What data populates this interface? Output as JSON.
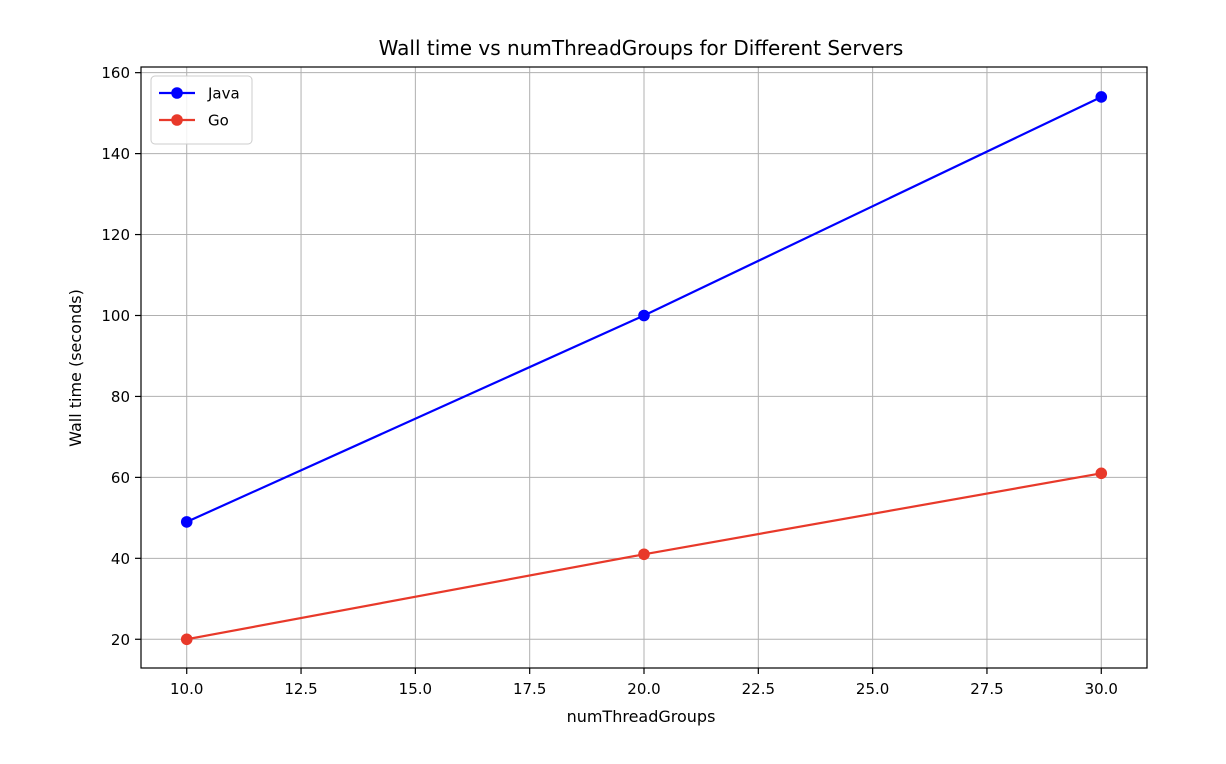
{
  "chart_data": {
    "type": "line",
    "title": "Wall time vs numThreadGroups for Different Servers",
    "xlabel": "numThreadGroups",
    "ylabel": "Wall time (seconds)",
    "xlim": [
      9.0,
      31.0
    ],
    "ylim": [
      12.9,
      161.4
    ],
    "x_ticks": [
      10.0,
      12.5,
      15.0,
      17.5,
      20.0,
      22.5,
      25.0,
      27.5,
      30.0
    ],
    "x_tick_labels": [
      "10.0",
      "12.5",
      "15.0",
      "17.5",
      "20.0",
      "22.5",
      "25.0",
      "27.5",
      "30.0"
    ],
    "y_ticks": [
      20,
      40,
      60,
      80,
      100,
      120,
      140,
      160
    ],
    "y_tick_labels": [
      "20",
      "40",
      "60",
      "80",
      "100",
      "120",
      "140",
      "160"
    ],
    "grid": true,
    "legend_position": "top-left",
    "x": [
      10,
      20,
      30
    ],
    "series": [
      {
        "name": "Java",
        "values": [
          49,
          100,
          154
        ],
        "color": "#0000ff",
        "marker": "circle"
      },
      {
        "name": "Go",
        "values": [
          20,
          41,
          61
        ],
        "color": "#e8392a",
        "marker": "circle"
      }
    ]
  }
}
